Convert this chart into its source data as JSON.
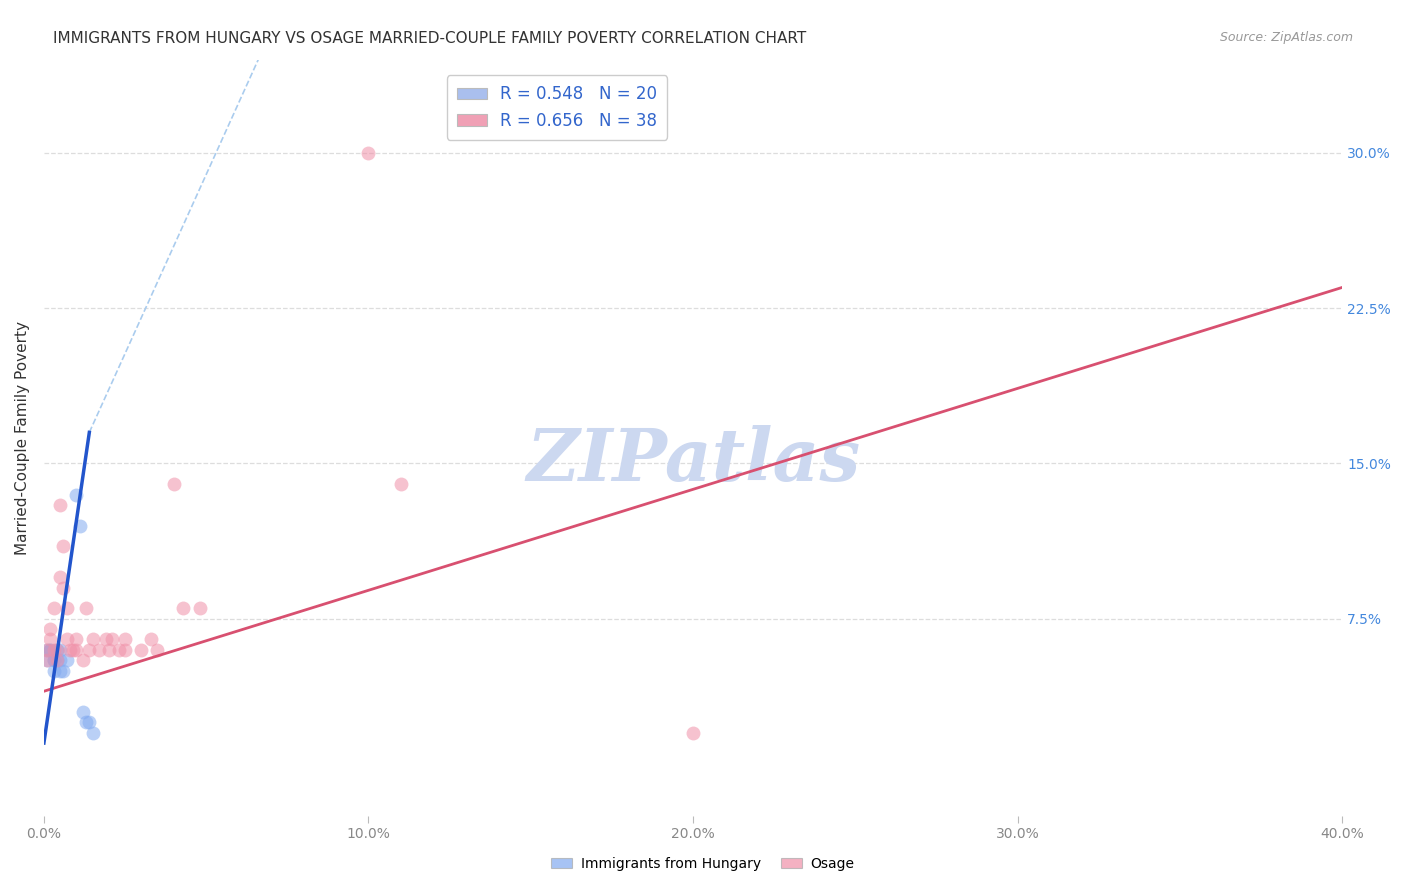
{
  "title": "IMMIGRANTS FROM HUNGARY VS OSAGE MARRIED-COUPLE FAMILY POVERTY CORRELATION CHART",
  "source": "Source: ZipAtlas.com",
  "ylabel": "Married-Couple Family Poverty",
  "y_ticks_right": [
    "7.5%",
    "15.0%",
    "22.5%",
    "30.0%"
  ],
  "legend_entries": [
    {
      "label": "R = 0.548   N = 20",
      "color": "#aabfee"
    },
    {
      "label": "R = 0.656   N = 38",
      "color": "#f0a0b5"
    }
  ],
  "legend_bottom": [
    "Immigrants from Hungary",
    "Osage"
  ],
  "watermark": "ZIPatlas",
  "blue_scatter": [
    [
      0.001,
      0.06
    ],
    [
      0.001,
      0.055
    ],
    [
      0.002,
      0.06
    ],
    [
      0.002,
      0.06
    ],
    [
      0.003,
      0.055
    ],
    [
      0.003,
      0.055
    ],
    [
      0.003,
      0.05
    ],
    [
      0.004,
      0.06
    ],
    [
      0.004,
      0.055
    ],
    [
      0.005,
      0.06
    ],
    [
      0.005,
      0.055
    ],
    [
      0.005,
      0.05
    ],
    [
      0.006,
      0.05
    ],
    [
      0.007,
      0.055
    ],
    [
      0.01,
      0.135
    ],
    [
      0.011,
      0.12
    ],
    [
      0.012,
      0.03
    ],
    [
      0.013,
      0.025
    ],
    [
      0.014,
      0.025
    ],
    [
      0.015,
      0.02
    ]
  ],
  "pink_scatter": [
    [
      0.001,
      0.06
    ],
    [
      0.001,
      0.055
    ],
    [
      0.002,
      0.07
    ],
    [
      0.002,
      0.065
    ],
    [
      0.003,
      0.06
    ],
    [
      0.003,
      0.08
    ],
    [
      0.004,
      0.06
    ],
    [
      0.004,
      0.055
    ],
    [
      0.005,
      0.13
    ],
    [
      0.005,
      0.095
    ],
    [
      0.006,
      0.11
    ],
    [
      0.006,
      0.09
    ],
    [
      0.007,
      0.08
    ],
    [
      0.007,
      0.065
    ],
    [
      0.008,
      0.06
    ],
    [
      0.009,
      0.06
    ],
    [
      0.01,
      0.065
    ],
    [
      0.01,
      0.06
    ],
    [
      0.012,
      0.055
    ],
    [
      0.013,
      0.08
    ],
    [
      0.014,
      0.06
    ],
    [
      0.015,
      0.065
    ],
    [
      0.017,
      0.06
    ],
    [
      0.019,
      0.065
    ],
    [
      0.02,
      0.06
    ],
    [
      0.021,
      0.065
    ],
    [
      0.023,
      0.06
    ],
    [
      0.025,
      0.065
    ],
    [
      0.025,
      0.06
    ],
    [
      0.03,
      0.06
    ],
    [
      0.033,
      0.065
    ],
    [
      0.035,
      0.06
    ],
    [
      0.04,
      0.14
    ],
    [
      0.043,
      0.08
    ],
    [
      0.048,
      0.08
    ],
    [
      0.1,
      0.3
    ],
    [
      0.11,
      0.14
    ],
    [
      0.2,
      0.02
    ]
  ],
  "blue_line_solid": [
    [
      0.0,
      0.015
    ],
    [
      0.014,
      0.165
    ]
  ],
  "blue_line_dashed": [
    [
      0.014,
      0.165
    ],
    [
      0.4,
      1.5
    ]
  ],
  "pink_line": [
    [
      0.0,
      0.04
    ],
    [
      0.4,
      0.235
    ]
  ],
  "xlim": [
    0.0,
    0.4
  ],
  "ylim": [
    -0.02,
    0.345
  ],
  "background_color": "#ffffff",
  "grid_color": "#dddddd",
  "scatter_size": 100,
  "blue_scatter_color": "#82aaf0",
  "pink_scatter_color": "#f090a8",
  "blue_line_color": "#2255cc",
  "pink_line_color": "#d85070",
  "blue_dashed_color": "#aaccee",
  "title_fontsize": 11,
  "source_fontsize": 9,
  "watermark_color": "#ccd8f0",
  "watermark_fontsize": 52
}
